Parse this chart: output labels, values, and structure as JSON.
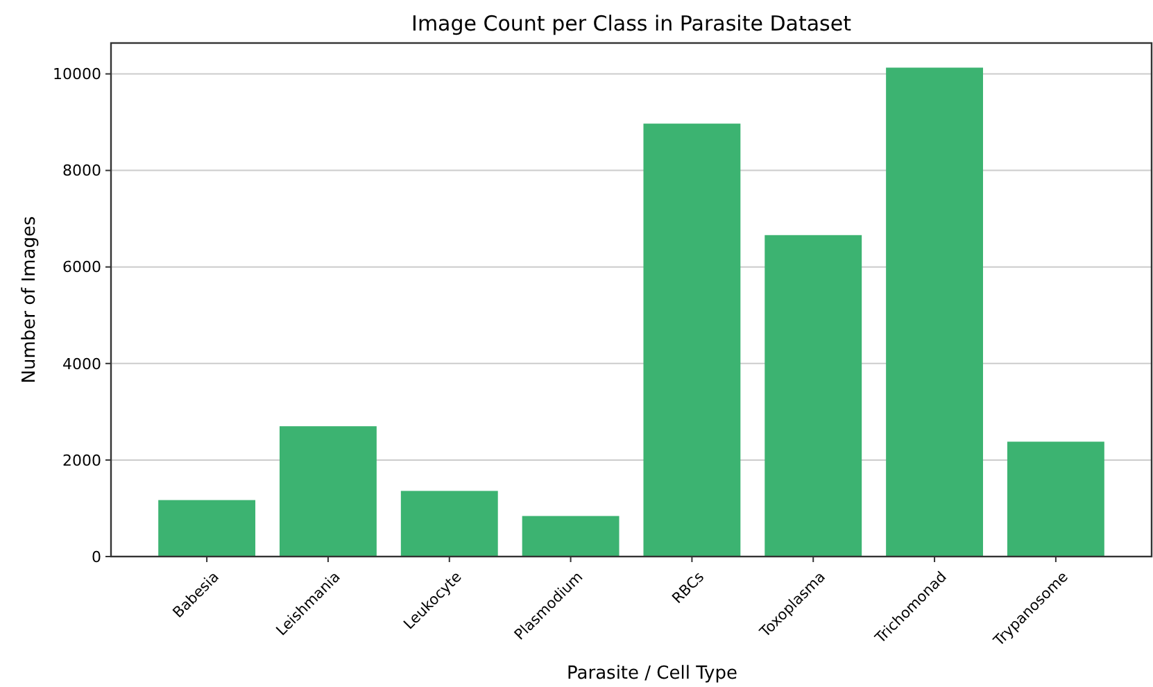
{
  "chart_data": {
    "type": "bar",
    "title": "Image Count per Class in Parasite Dataset",
    "xlabel": "Parasite / Cell Type",
    "ylabel": "Number of Images",
    "categories": [
      "Babesia",
      "Leishmania",
      "Leukocyte",
      "Plasmodium",
      "RBCs",
      "Toxoplasma",
      "Trichomonad",
      "Trypanosome"
    ],
    "values": [
      1170,
      2700,
      1360,
      840,
      8970,
      6660,
      10130,
      2380
    ],
    "color": "#3cb371",
    "ylim": [
      0,
      10640
    ],
    "yticks": [
      0,
      2000,
      4000,
      6000,
      8000,
      10000
    ],
    "grid": "y"
  }
}
